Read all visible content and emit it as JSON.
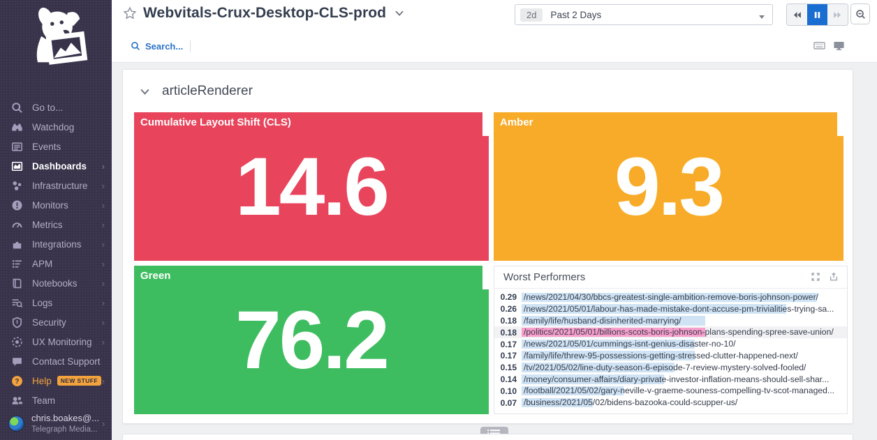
{
  "sidebar": {
    "items": [
      {
        "label": "Go to...",
        "icon": "search-icon"
      },
      {
        "label": "Watchdog",
        "icon": "binoculars-icon"
      },
      {
        "label": "Events",
        "icon": "events-icon"
      },
      {
        "label": "Dashboards",
        "icon": "dashboards-icon",
        "active": true,
        "submenu": true
      },
      {
        "label": "Infrastructure",
        "icon": "infrastructure-icon",
        "submenu": true
      },
      {
        "label": "Monitors",
        "icon": "monitors-icon",
        "submenu": true
      },
      {
        "label": "Metrics",
        "icon": "metrics-icon",
        "submenu": true
      },
      {
        "label": "Integrations",
        "icon": "integrations-icon",
        "submenu": true
      },
      {
        "label": "APM",
        "icon": "apm-icon",
        "submenu": true
      },
      {
        "label": "Notebooks",
        "icon": "notebooks-icon",
        "submenu": true
      },
      {
        "label": "Logs",
        "icon": "logs-icon",
        "submenu": true
      },
      {
        "label": "Security",
        "icon": "security-icon",
        "submenu": true
      },
      {
        "label": "UX Monitoring",
        "icon": "ux-monitoring-icon",
        "submenu": true
      },
      {
        "label": "Contact Support",
        "icon": "chat-bubble-icon"
      },
      {
        "label": "Help",
        "icon": "help-icon",
        "submenu": true,
        "highlight": true,
        "badge": "NEW STUFF"
      },
      {
        "label": "Team",
        "icon": "team-icon"
      }
    ],
    "user": {
      "name": "chris.boakes@...",
      "org": "Telegraph Media..."
    }
  },
  "header": {
    "title": "Webvitals-Crux-Desktop-CLS-prod",
    "search_placeholder": "Search...",
    "time_range": {
      "badge": "2d",
      "label": "Past 2 Days"
    }
  },
  "dashboard": {
    "section_title": "articleRenderer",
    "tiles": [
      {
        "title": "Cumulative Layout Shift (CLS)",
        "value": "14.6",
        "color": "#e8455c"
      },
      {
        "title": "Amber",
        "value": "9.3",
        "color": "#f8ab28"
      },
      {
        "title": "Green",
        "value": "76.2",
        "color": "#3ebd60"
      }
    ],
    "worst_performers": {
      "title": "Worst Performers",
      "bar_scale_max": 0.314,
      "bar_colors": {
        "blue": "#cfe3f4",
        "pink": "#f99fce"
      },
      "rows": [
        {
          "value": "0.29",
          "url": "/news/2021/04/30/bbcs-greatest-single-ambition-remove-boris-johnson-power/",
          "bar": "blue"
        },
        {
          "value": "0.26",
          "url": "/news/2021/05/01/labour-has-made-mistake-dont-accuse-pm-trivialities-trying-sa...",
          "bar": "blue"
        },
        {
          "value": "0.18",
          "url": "/family/life/husband-disinherited-marrying/",
          "bar": "blue"
        },
        {
          "value": "0.18",
          "url": "/politics/2021/05/01/billions-scots-boris-johnson-plans-spending-spree-save-union/",
          "bar": "pink",
          "highlighted": true
        },
        {
          "value": "0.17",
          "url": "/news/2021/05/01/cummings-isnt-genius-disaster-no-10/",
          "bar": "blue"
        },
        {
          "value": "0.17",
          "url": "/family/life/threw-95-possessions-getting-stressed-clutter-happened-next/",
          "bar": "blue"
        },
        {
          "value": "0.15",
          "url": "/tv/2021/05/02/line-duty-season-6-episode-7-review-mystery-solved-fooled/",
          "bar": "blue"
        },
        {
          "value": "0.14",
          "url": "/money/consumer-affairs/diary-private-investor-inflation-means-should-sell-shar...",
          "bar": "blue"
        },
        {
          "value": "0.10",
          "url": "/football/2021/05/02/gary-neville-v-graeme-souness-compelling-tv-scot-managed...",
          "bar": "blue"
        },
        {
          "value": "0.07",
          "url": "/business/2021/05/02/bidens-bazooka-could-scupper-us/",
          "bar": "blue"
        }
      ]
    }
  },
  "chart_data": [
    {
      "type": "query_value",
      "title": "Cumulative Layout Shift (CLS)",
      "value": 14.6,
      "background_color": "#e8455c"
    },
    {
      "type": "query_value",
      "title": "Amber",
      "value": 9.3,
      "background_color": "#f8ab28"
    },
    {
      "type": "query_value",
      "title": "Green",
      "value": 76.2,
      "background_color": "#3ebd60"
    },
    {
      "type": "bar",
      "orientation": "horizontal",
      "title": "Worst Performers",
      "categories": [
        "/news/2021/04/30/bbcs-greatest-single-ambition-remove-boris-johnson-power/",
        "/news/2021/05/01/labour-has-made-mistake-dont-accuse-pm-trivialities-trying-sa...",
        "/family/life/husband-disinherited-marrying/",
        "/politics/2021/05/01/billions-scots-boris-johnson-plans-spending-spree-save-union/",
        "/news/2021/05/01/cummings-isnt-genius-disaster-no-10/",
        "/family/life/threw-95-possessions-getting-stressed-clutter-happened-next/",
        "/tv/2021/05/02/line-duty-season-6-episode-7-review-mystery-solved-fooled/",
        "/money/consumer-affairs/diary-private-investor-inflation-means-should-sell-shar...",
        "/football/2021/05/02/gary-neville-v-graeme-souness-compelling-tv-scot-managed...",
        "/business/2021/05/02/bidens-bazooka-could-scupper-us/"
      ],
      "values": [
        0.29,
        0.26,
        0.18,
        0.18,
        0.17,
        0.17,
        0.15,
        0.14,
        0.1,
        0.07
      ],
      "xlim": [
        0,
        0.314
      ],
      "legend": false
    }
  ]
}
